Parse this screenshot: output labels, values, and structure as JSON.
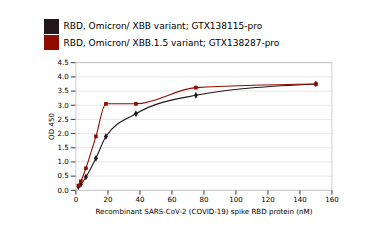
{
  "chart_data": {
    "type": "line",
    "xlabel": "Recombinant SARS-CoV-2 (COVID-19) spike RBD protein (nM)",
    "ylabel": "OD 450",
    "x": [
      1.56,
      3.125,
      6.25,
      12.5,
      18.75,
      37.5,
      75,
      150
    ],
    "series": [
      {
        "name": "RBD, Omicron/ XBB variant; GTX138115-pro",
        "marker": "diamond",
        "values": [
          0.13,
          0.21,
          0.47,
          1.13,
          1.9,
          2.7,
          3.35,
          3.75
        ]
      },
      {
        "name": "RBD, Omicron/ XBB.1.5 variant; GTX138287-pro",
        "marker": "square",
        "values": [
          0.17,
          0.32,
          0.78,
          1.9,
          3.05,
          3.05,
          3.62,
          3.75
        ]
      }
    ],
    "xlim": [
      0,
      160
    ],
    "ylim": [
      0,
      4.5
    ],
    "xticks": [
      0,
      20,
      40,
      60,
      80,
      100,
      120,
      140,
      160
    ],
    "yticks": [
      {
        "value": 0,
        "label": "0.0"
      },
      0.5,
      {
        "value": 1,
        "label": "1.0"
      },
      1.5,
      {
        "value": 2,
        "label": "2.0"
      },
      2.5,
      {
        "value": 3,
        "label": "3.0"
      },
      3.5,
      {
        "value": 4,
        "label": "4.0"
      },
      4.5
    ],
    "grid": true
  }
}
